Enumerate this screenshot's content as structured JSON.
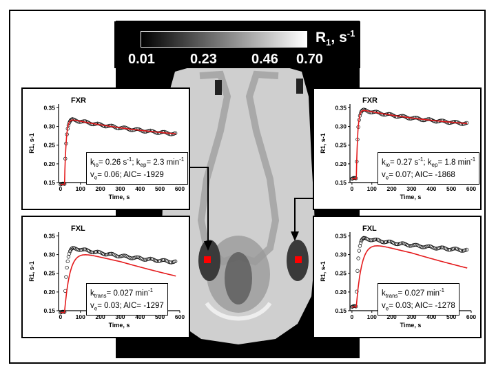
{
  "colorbar": {
    "title": "R",
    "title_sub": "1",
    "title_rest": ", s",
    "title_sup": "-1",
    "ticks": [
      "0.01",
      "0.23",
      "0.46",
      "0.70"
    ]
  },
  "panels": [
    {
      "id": "fxr-left",
      "title": "FXR",
      "ylabel": "R",
      "ylabel_sub": "1",
      "ylabel_rest": ", s",
      "ylabel_sup": "-1",
      "xlabel": "Time, s",
      "yticks": [
        "0.15",
        "0.20",
        "0.25",
        "0.30",
        "0.35"
      ],
      "xticks": [
        "0",
        "100",
        "200",
        "300",
        "400",
        "500",
        "600"
      ],
      "annotation_line1": "k",
      "annotation": [
        "k_io= 0.26 s-1; k_ep= 2.3 min-1",
        "v_e= 0.06; AIC= -1929"
      ]
    },
    {
      "id": "fxr-right",
      "title": "FXR",
      "ylabel": "R",
      "ylabel_sub": "1",
      "ylabel_rest": ", s",
      "ylabel_sup": "-1",
      "xlabel": "Time, s",
      "yticks": [
        "0.15",
        "0.20",
        "0.25",
        "0.30",
        "0.35"
      ],
      "xticks": [
        "0",
        "100",
        "200",
        "300",
        "400",
        "500",
        "600"
      ],
      "annotation": [
        "k_io= 0.27 s-1; k_ep= 1.8 min-1",
        "v_e= 0.07; AIC= -1868"
      ]
    },
    {
      "id": "fxl-left",
      "title": "FXL",
      "ylabel": "R",
      "ylabel_sub": "1",
      "ylabel_rest": ", s",
      "ylabel_sup": "-1",
      "xlabel": "Time, s",
      "yticks": [
        "0.15",
        "0.20",
        "0.25",
        "0.30",
        "0.35"
      ],
      "xticks": [
        "0",
        "100",
        "200",
        "300",
        "400",
        "500",
        "600"
      ],
      "annotation": [
        "k_trans= 0.027 min-1",
        "v_e= 0.03; AIC= -1297"
      ]
    },
    {
      "id": "fxl-right",
      "title": "FXL",
      "ylabel": "R",
      "ylabel_sub": "1",
      "ylabel_rest": ", s",
      "ylabel_sup": "-1",
      "xlabel": "Time, s",
      "yticks": [
        "0.15",
        "0.20",
        "0.25",
        "0.30",
        "0.35"
      ],
      "xticks": [
        "0",
        "100",
        "200",
        "300",
        "400",
        "500",
        "600"
      ],
      "annotation": [
        "k_trans= 0.027 min-1",
        "v_e= 0.03; AIC= -1278"
      ]
    }
  ],
  "colors": {
    "fit": "#e41a1c",
    "roi": "#ff0000",
    "data": "#000000"
  }
}
